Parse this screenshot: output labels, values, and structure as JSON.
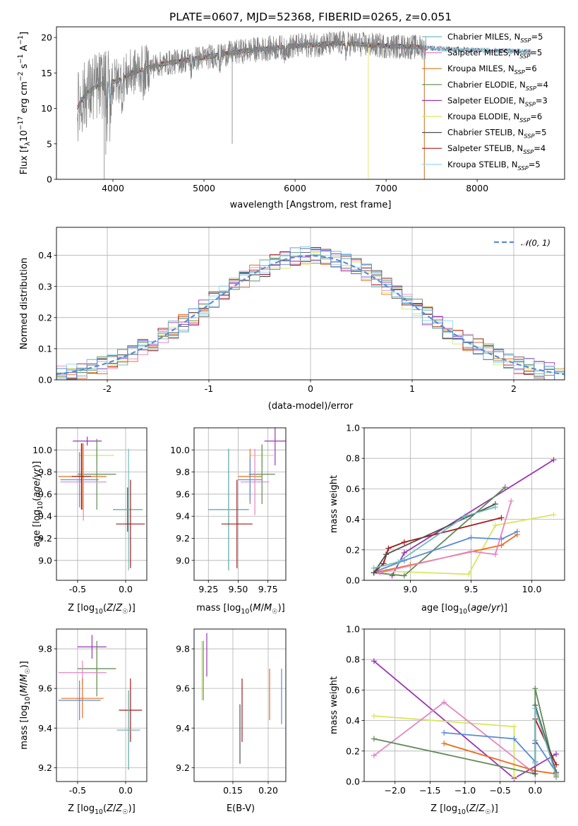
{
  "figure": {
    "title": "PLATE=0607, MJD=52368, FIBERID=0265, z=0.051"
  },
  "chart_data": [
    {
      "type": "line",
      "id": "spectrum",
      "xlabel": "wavelength [Angstrom, rest frame]",
      "ylabel": "Flux [f_λ 10^-17 erg cm^-2 s^-1 A^-1]",
      "xlim": [
        3380,
        8960
      ],
      "ylim": [
        0,
        21.5
      ],
      "xticks": [
        4000,
        5000,
        6000,
        7000,
        8000
      ],
      "yticks": [
        0,
        5,
        10,
        15,
        20
      ],
      "data_series_color": "#808080",
      "continuum_points": [
        [
          3600,
          10
        ],
        [
          3700,
          12
        ],
        [
          3800,
          13
        ],
        [
          3900,
          13.5
        ],
        [
          4000,
          13.8
        ],
        [
          4100,
          14
        ],
        [
          4200,
          15
        ],
        [
          4500,
          16.2
        ],
        [
          5000,
          17.2
        ],
        [
          5500,
          18.2
        ],
        [
          6000,
          18.8
        ],
        [
          6500,
          19.2
        ],
        [
          7000,
          18.8
        ],
        [
          7400,
          18.6
        ],
        [
          7600,
          18.4
        ],
        [
          8000,
          18.2
        ],
        [
          8600,
          18.0
        ]
      ],
      "models_end_wavelength": [
        8600,
        8600,
        7400,
        7400,
        7400,
        6800,
        8600,
        7400,
        8600
      ],
      "legend": [
        {
          "label": "Chabrier MILES, N_SSP=5",
          "color": "#6ebcb8"
        },
        {
          "label": "Salpeter MILES, N_SSP=5",
          "color": "#e485c2"
        },
        {
          "label": "Kroupa MILES, N_SSP=6",
          "color": "#d3771f"
        },
        {
          "label": "Chabrier ELODIE, N_SSP=4",
          "color": "#5e8a55"
        },
        {
          "label": "Salpeter ELODIE, N_SSP=3",
          "color": "#9a35b4"
        },
        {
          "label": "Kroupa ELODIE, N_SSP=6",
          "color": "#d9e560"
        },
        {
          "label": "Chabrier STELIB, N_SSP=5",
          "color": "#505050"
        },
        {
          "label": "Salpeter STELIB, N_SSP=4",
          "color": "#a5191c"
        },
        {
          "label": "Kroupa STELIB, N_SSP=5",
          "color": "#8cd7ee"
        }
      ],
      "legend_position": "right"
    },
    {
      "type": "histogram",
      "id": "residuals",
      "xlabel": "(data-model)/error",
      "ylabel": "Normed distribution",
      "xlim": [
        -2.5,
        2.5
      ],
      "ylim": [
        0,
        0.49
      ],
      "xticks": [
        -2,
        -1,
        0,
        1,
        2
      ],
      "yticks": [
        0.0,
        0.1,
        0.2,
        0.3,
        0.4
      ],
      "grid": true,
      "bin_width": 0.1,
      "reference": {
        "label": "𝒩(0, 1)",
        "color": "#5b8bd8",
        "style": "dashed"
      },
      "legend_position": "top-right",
      "histogram_colors": [
        "#e96f1f",
        "#e485c2",
        "#5e8a55",
        "#9a35b4",
        "#d9e560",
        "#505050",
        "#a5191c",
        "#8cd7ee",
        "#6ebcb8",
        "#5b8bd8"
      ]
    },
    {
      "type": "scatter",
      "id": "age_vs_Z",
      "xlabel": "Z [log10(Z/Z☉)]",
      "ylabel": "age  [log10(age/yr)]",
      "xlim": [
        -0.72,
        0.22
      ],
      "ylim": [
        8.82,
        10.2
      ],
      "xticks": [
        -0.5,
        0.0
      ],
      "yticks": [
        9.0,
        9.2,
        9.4,
        9.6,
        9.8,
        10.0
      ],
      "grid": true,
      "points": [
        {
          "x": -0.4,
          "y": 10.08,
          "xerr": 0.15,
          "yerr": 0.04,
          "color": "#9a35b4"
        },
        {
          "x": -0.3,
          "y": 9.95,
          "xerr": 0.18,
          "yerr": 0.08,
          "color": "#d9e560"
        },
        {
          "x": -0.3,
          "y": 9.78,
          "xerr": 0.2,
          "yerr": 0.32,
          "color": "#5e8a55"
        },
        {
          "x": -0.45,
          "y": 9.76,
          "xerr": 0.25,
          "yerr": 0.3,
          "color": "#e96f1f"
        },
        {
          "x": -0.48,
          "y": 9.73,
          "xerr": 0.2,
          "yerr": 0.25,
          "color": "#5b8bd8"
        },
        {
          "x": -0.44,
          "y": 9.71,
          "xerr": 0.24,
          "yerr": 0.35,
          "color": "#e485c2"
        },
        {
          "x": -0.46,
          "y": 9.76,
          "xerr": 0.1,
          "yerr": 0.3,
          "color": "#a5191c"
        },
        {
          "x": 0.02,
          "y": 9.46,
          "xerr": 0.15,
          "yerr": 0.2,
          "color": "#505050"
        },
        {
          "x": 0.03,
          "y": 9.46,
          "xerr": 0.15,
          "yerr": 0.55,
          "color": "#6ebcb8"
        },
        {
          "x": 0.05,
          "y": 9.33,
          "xerr": 0.15,
          "yerr": 0.4,
          "color": "#a5191c"
        }
      ]
    },
    {
      "type": "scatter",
      "id": "age_vs_mass",
      "xlabel": "mass [log10(M/M☉)]",
      "ylabel": "",
      "xlim": [
        9.13,
        9.9
      ],
      "ylim": [
        8.82,
        10.2
      ],
      "xticks": [
        9.25,
        9.5,
        9.75
      ],
      "yticks": [
        9.0,
        9.2,
        9.4,
        9.6,
        9.8,
        10.0
      ],
      "grid": true,
      "points": [
        {
          "x": 9.81,
          "y": 10.08,
          "xerr": 0.09,
          "yerr": 0.22,
          "color": "#9a35b4"
        },
        {
          "x": 9.7,
          "y": 9.95,
          "xerr": 0.1,
          "yerr": 0.1,
          "color": "#d9e560"
        },
        {
          "x": 9.7,
          "y": 9.78,
          "xerr": 0.11,
          "yerr": 0.27,
          "color": "#5e8a55"
        },
        {
          "x": 9.6,
          "y": 9.76,
          "xerr": 0.1,
          "yerr": 0.25,
          "color": "#e96f1f"
        },
        {
          "x": 9.6,
          "y": 9.73,
          "xerr": 0.1,
          "yerr": 0.2,
          "color": "#5b8bd8"
        },
        {
          "x": 9.64,
          "y": 9.71,
          "xerr": 0.12,
          "yerr": 0.3,
          "color": "#e485c2"
        },
        {
          "x": 9.42,
          "y": 9.46,
          "xerr": 0.17,
          "yerr": 0.55,
          "color": "#505050"
        },
        {
          "x": 9.42,
          "y": 9.46,
          "xerr": 0.17,
          "yerr": 0.55,
          "color": "#6ebcb8"
        },
        {
          "x": 9.49,
          "y": 9.33,
          "xerr": 0.13,
          "yerr": 0.4,
          "color": "#a5191c"
        }
      ]
    },
    {
      "type": "line",
      "id": "mass_weight_vs_age",
      "xlabel": "age  [log10(age/yr)]",
      "ylabel": "mass weight",
      "xlim": [
        8.62,
        10.27
      ],
      "ylim": [
        0.0,
        1.0
      ],
      "xticks": [
        9.0,
        9.5,
        10.0
      ],
      "yticks": [
        0.0,
        0.2,
        0.4,
        0.6,
        0.8,
        1.0
      ],
      "grid": true,
      "series": [
        {
          "color": "#9a35b4",
          "x": [
            8.85,
            8.95,
            10.18
          ],
          "y": [
            0.03,
            0.18,
            0.79
          ]
        },
        {
          "color": "#d9e560",
          "x": [
            8.8,
            9.48,
            9.7,
            10.18
          ],
          "y": [
            0.06,
            0.04,
            0.36,
            0.43
          ]
        },
        {
          "color": "#5e8a55",
          "x": [
            8.7,
            8.95,
            9.78
          ],
          "y": [
            0.05,
            0.03,
            0.61
          ]
        },
        {
          "color": "#e96f1f",
          "x": [
            8.7,
            9.0,
            9.75,
            9.88
          ],
          "y": [
            0.05,
            0.1,
            0.23,
            0.3
          ]
        },
        {
          "color": "#5b8bd8",
          "x": [
            8.72,
            8.95,
            9.5,
            9.75,
            9.88
          ],
          "y": [
            0.06,
            0.13,
            0.28,
            0.27,
            0.32
          ]
        },
        {
          "color": "#e485c2",
          "x": [
            8.75,
            9.5,
            9.7,
            9.83
          ],
          "y": [
            0.05,
            0.19,
            0.17,
            0.52
          ]
        },
        {
          "color": "#a5191c",
          "x": [
            8.7,
            8.78,
            8.82,
            8.95,
            9.75
          ],
          "y": [
            0.05,
            0.11,
            0.21,
            0.25,
            0.41
          ]
        },
        {
          "color": "#505050",
          "x": [
            8.7,
            8.8,
            9.7
          ],
          "y": [
            0.05,
            0.17,
            0.5
          ]
        },
        {
          "color": "#6ebcb8",
          "x": [
            8.7,
            8.9,
            9.45,
            9.7
          ],
          "y": [
            0.08,
            0.12,
            0.42,
            0.48
          ]
        }
      ]
    },
    {
      "type": "scatter",
      "id": "mass_vs_Z",
      "xlabel": "Z [log10(Z/Z☉)]",
      "ylabel": "mass [log10(M/M☉)]",
      "xlim": [
        -0.72,
        0.22
      ],
      "ylim": [
        9.13,
        9.9
      ],
      "xticks": [
        -0.5,
        0.0
      ],
      "yticks": [
        9.2,
        9.4,
        9.6,
        9.8
      ],
      "grid": true,
      "points": [
        {
          "x": -0.35,
          "y": 9.81,
          "xerr": 0.15,
          "yerr": 0.06,
          "color": "#9a35b4"
        },
        {
          "x": -0.3,
          "y": 9.7,
          "xerr": 0.2,
          "yerr": 0.1,
          "color": "#d9e560"
        },
        {
          "x": -0.3,
          "y": 9.7,
          "xerr": 0.2,
          "yerr": 0.14,
          "color": "#5e8a55"
        },
        {
          "x": -0.45,
          "y": 9.68,
          "xerr": 0.25,
          "yerr": 0.06,
          "color": "#e485c2"
        },
        {
          "x": -0.45,
          "y": 9.55,
          "xerr": 0.22,
          "yerr": 0.1,
          "color": "#e96f1f"
        },
        {
          "x": -0.48,
          "y": 9.54,
          "xerr": 0.22,
          "yerr": 0.1,
          "color": "#5b8bd8"
        },
        {
          "x": 0.05,
          "y": 9.49,
          "xerr": 0.12,
          "yerr": 0.16,
          "color": "#a5191c"
        },
        {
          "x": 0.03,
          "y": 9.39,
          "xerr": 0.12,
          "yerr": 0.2,
          "color": "#505050"
        },
        {
          "x": 0.03,
          "y": 9.39,
          "xerr": 0.12,
          "yerr": 0.2,
          "color": "#6ebcb8"
        }
      ]
    },
    {
      "type": "scatter",
      "id": "mass_vs_ebv",
      "xlabel": "E(B-V)",
      "ylabel": "",
      "xlim": [
        0.095,
        0.225
      ],
      "ylim": [
        9.13,
        9.9
      ],
      "xticks": [
        0.15,
        0.2
      ],
      "yticks": [
        9.2,
        9.4,
        9.6,
        9.8
      ],
      "grid": true,
      "points": [
        {
          "x": 0.106,
          "y": 9.69,
          "yerr": 0.15,
          "color": "#d9e560"
        },
        {
          "x": 0.108,
          "y": 9.69,
          "yerr": 0.15,
          "color": "#5e8a55"
        },
        {
          "x": 0.113,
          "y": 9.77,
          "yerr": 0.11,
          "color": "#9a35b4"
        },
        {
          "x": 0.16,
          "y": 9.37,
          "yerr": 0.15,
          "color": "#505050"
        },
        {
          "x": 0.163,
          "y": 9.49,
          "yerr": 0.16,
          "color": "#a5191c"
        },
        {
          "x": 0.202,
          "y": 9.57,
          "yerr": 0.13,
          "color": "#e96f1f"
        },
        {
          "x": 0.219,
          "y": 9.56,
          "yerr": 0.14,
          "color": "#5b8bd8"
        }
      ]
    },
    {
      "type": "line",
      "id": "mass_weight_vs_Z",
      "xlabel": "Z [log10(Z/Z☉)]",
      "ylabel": "mass weight",
      "xlim": [
        -2.44,
        0.42
      ],
      "ylim": [
        0.0,
        1.0
      ],
      "xticks": [
        -2.0,
        -1.5,
        -1.0,
        -0.5,
        0.0
      ],
      "yticks": [
        0.0,
        0.2,
        0.4,
        0.6,
        0.8,
        1.0
      ],
      "grid": true,
      "series": [
        {
          "color": "#9a35b4",
          "x": [
            -2.3,
            -0.3,
            0.3
          ],
          "y": [
            0.79,
            0.02,
            0.18
          ]
        },
        {
          "color": "#d9e560",
          "x": [
            -2.3,
            -0.3,
            -0.3
          ],
          "y": [
            0.43,
            0.36,
            0.03
          ]
        },
        {
          "color": "#e485c2",
          "x": [
            -2.3,
            -1.3,
            0.0
          ],
          "y": [
            0.17,
            0.52,
            0.05
          ]
        },
        {
          "color": "#5e8a55",
          "x": [
            -2.3,
            0.0,
            0.0,
            0.3
          ],
          "y": [
            0.28,
            0.05,
            0.61,
            0.03
          ]
        },
        {
          "color": "#5b8bd8",
          "x": [
            -1.3,
            -0.3,
            0.0,
            0.0,
            0.3
          ],
          "y": [
            0.32,
            0.28,
            0.13,
            0.27,
            0.06
          ]
        },
        {
          "color": "#e96f1f",
          "x": [
            -1.3,
            0.0,
            0.3
          ],
          "y": [
            0.25,
            0.07,
            0.05
          ]
        },
        {
          "color": "#a5191c",
          "x": [
            0.0,
            0.0,
            0.3
          ],
          "y": [
            0.25,
            0.41,
            0.11
          ]
        },
        {
          "color": "#505050",
          "x": [
            0.0,
            0.0,
            0.3
          ],
          "y": [
            0.05,
            0.5,
            0.06
          ]
        },
        {
          "color": "#6ebcb8",
          "x": [
            0.0,
            0.0,
            0.3
          ],
          "y": [
            0.12,
            0.48,
            0.04
          ]
        }
      ]
    }
  ]
}
